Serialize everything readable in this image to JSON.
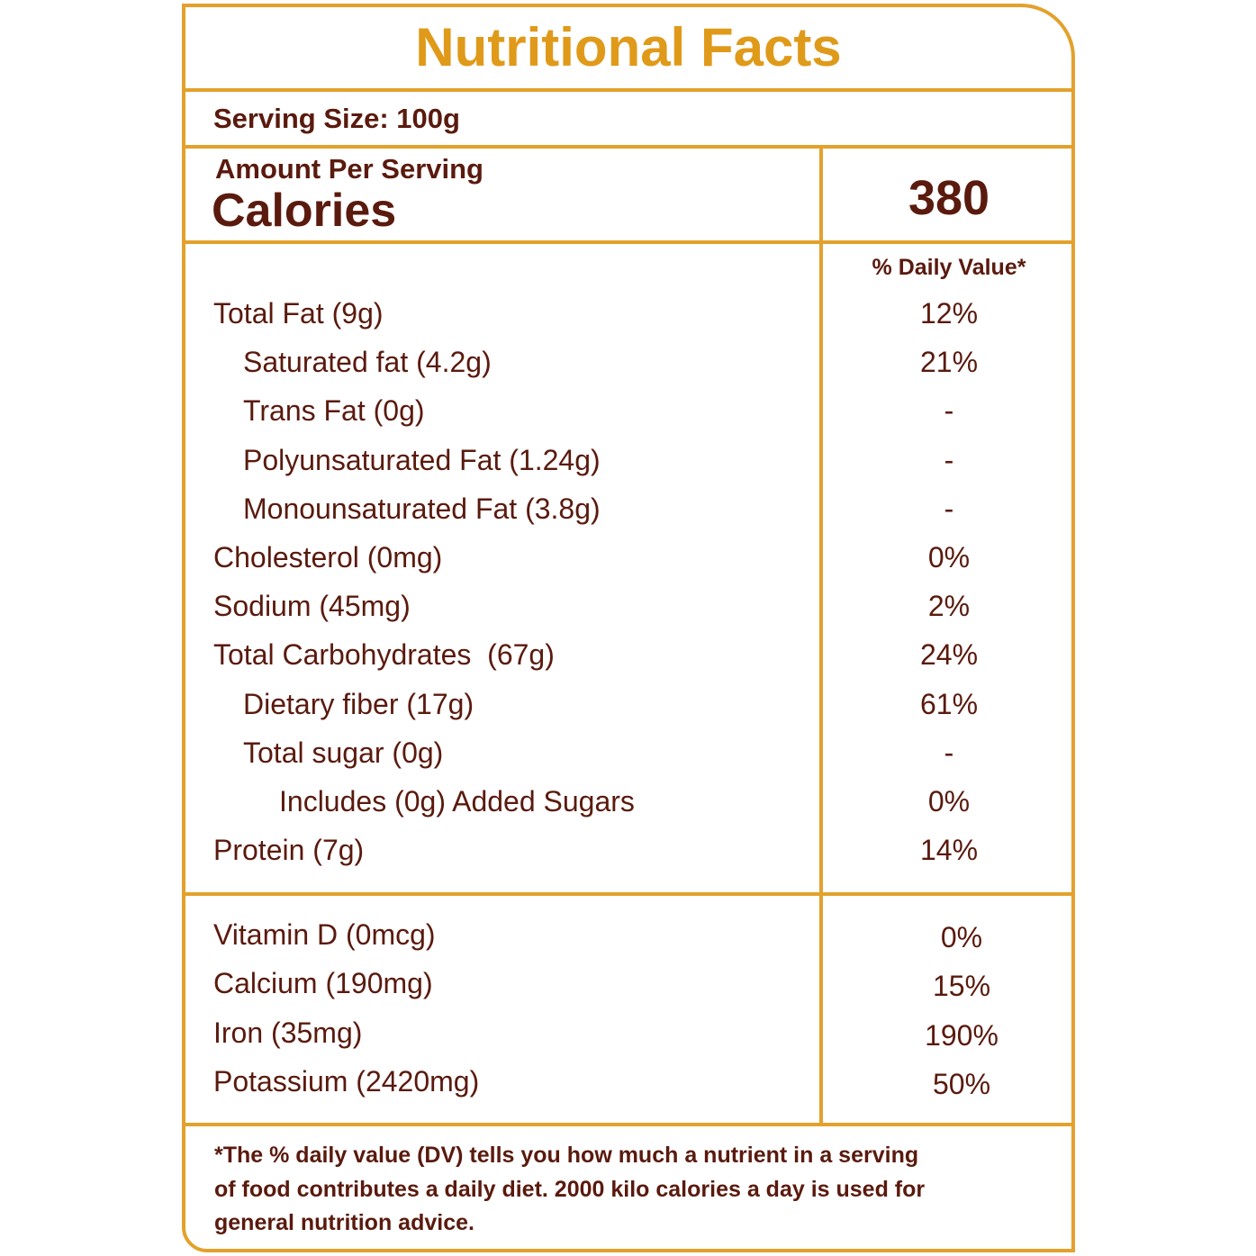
{
  "title": "Nutritional Facts",
  "serving_size": "Serving Size: 100g",
  "amount_per_serving": "Amount Per Serving",
  "calories_label": "Calories",
  "calories_value": 380,
  "daily_value_header": "% Daily Value*",
  "nutrients": [
    {
      "label": "Total Fat (9g)",
      "dv": "12%"
    },
    {
      "label": "Saturated fat (4.2g)",
      "dv": "21%"
    },
    {
      "label": "Trans Fat (0g)",
      "dv": "-"
    },
    {
      "label": "Polyunsaturated Fat (1.24g)",
      "dv": "-"
    },
    {
      "label": "Monounsaturated Fat (3.8g)",
      "dv": "-"
    },
    {
      "label": "Cholesterol (0mg)",
      "dv": "0%"
    },
    {
      "label": "Sodium (45mg)",
      "dv": "2%"
    },
    {
      "label": "Total Carbohydrates  (67g)",
      "dv": "24%"
    },
    {
      "label": "Dietary fiber (17g)",
      "dv": "61%"
    },
    {
      "label": "Total sugar (0g)",
      "dv": "-"
    },
    {
      "label": "Includes (0g) Added Sugars",
      "dv": "0%"
    },
    {
      "label": "Protein (7g)",
      "dv": "14%"
    }
  ],
  "vitamins": [
    {
      "label": "Vitamin D (0mcg)",
      "dv": "0%"
    },
    {
      "label": "Calcium (190mg)",
      "dv": "15%"
    },
    {
      "label": "Iron (35mg)",
      "dv": "190%"
    },
    {
      "label": "Potassium (2420mg)",
      "dv": "50%"
    }
  ],
  "footnote": [
    "*The % daily value (DV) tells you how much a nutrient in a serving",
    "of food contributes a daily diet. 2000 kilo calories a day is used for",
    "general nutrition advice."
  ]
}
